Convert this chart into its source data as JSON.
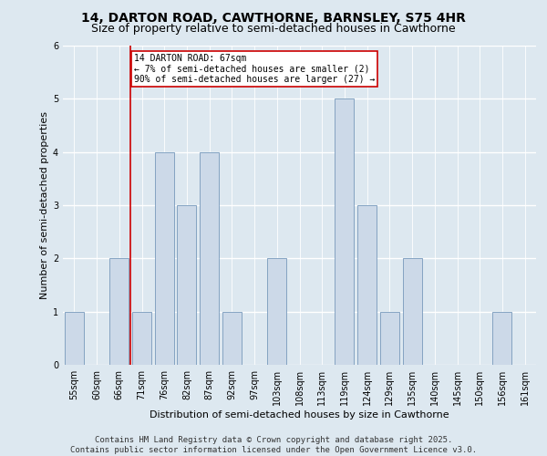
{
  "title_line1": "14, DARTON ROAD, CAWTHORNE, BARNSLEY, S75 4HR",
  "title_line2": "Size of property relative to semi-detached houses in Cawthorne",
  "xlabel": "Distribution of semi-detached houses by size in Cawthorne",
  "ylabel": "Number of semi-detached properties",
  "categories": [
    "55sqm",
    "60sqm",
    "66sqm",
    "71sqm",
    "76sqm",
    "82sqm",
    "87sqm",
    "92sqm",
    "97sqm",
    "103sqm",
    "108sqm",
    "113sqm",
    "119sqm",
    "124sqm",
    "129sqm",
    "135sqm",
    "140sqm",
    "145sqm",
    "150sqm",
    "156sqm",
    "161sqm"
  ],
  "values": [
    1,
    0,
    2,
    1,
    4,
    3,
    4,
    1,
    0,
    2,
    0,
    0,
    5,
    3,
    1,
    2,
    0,
    0,
    0,
    1,
    0
  ],
  "bar_color": "#ccd9e8",
  "bar_edge_color": "#7799bb",
  "property_line_x": 2.5,
  "property_line_color": "#cc0000",
  "annotation_text": "14 DARTON ROAD: 67sqm\n← 7% of semi-detached houses are smaller (2)\n90% of semi-detached houses are larger (27) →",
  "annotation_box_color": "#ffffff",
  "annotation_box_edge": "#cc0000",
  "ylim": [
    0,
    6
  ],
  "yticks": [
    0,
    1,
    2,
    3,
    4,
    5,
    6
  ],
  "footer_line1": "Contains HM Land Registry data © Crown copyright and database right 2025.",
  "footer_line2": "Contains public sector information licensed under the Open Government Licence v3.0.",
  "bg_color": "#dde8f0",
  "grid_color": "#ffffff",
  "title_fontsize": 10,
  "subtitle_fontsize": 9,
  "axis_label_fontsize": 8,
  "tick_fontsize": 7,
  "footer_fontsize": 6.5
}
